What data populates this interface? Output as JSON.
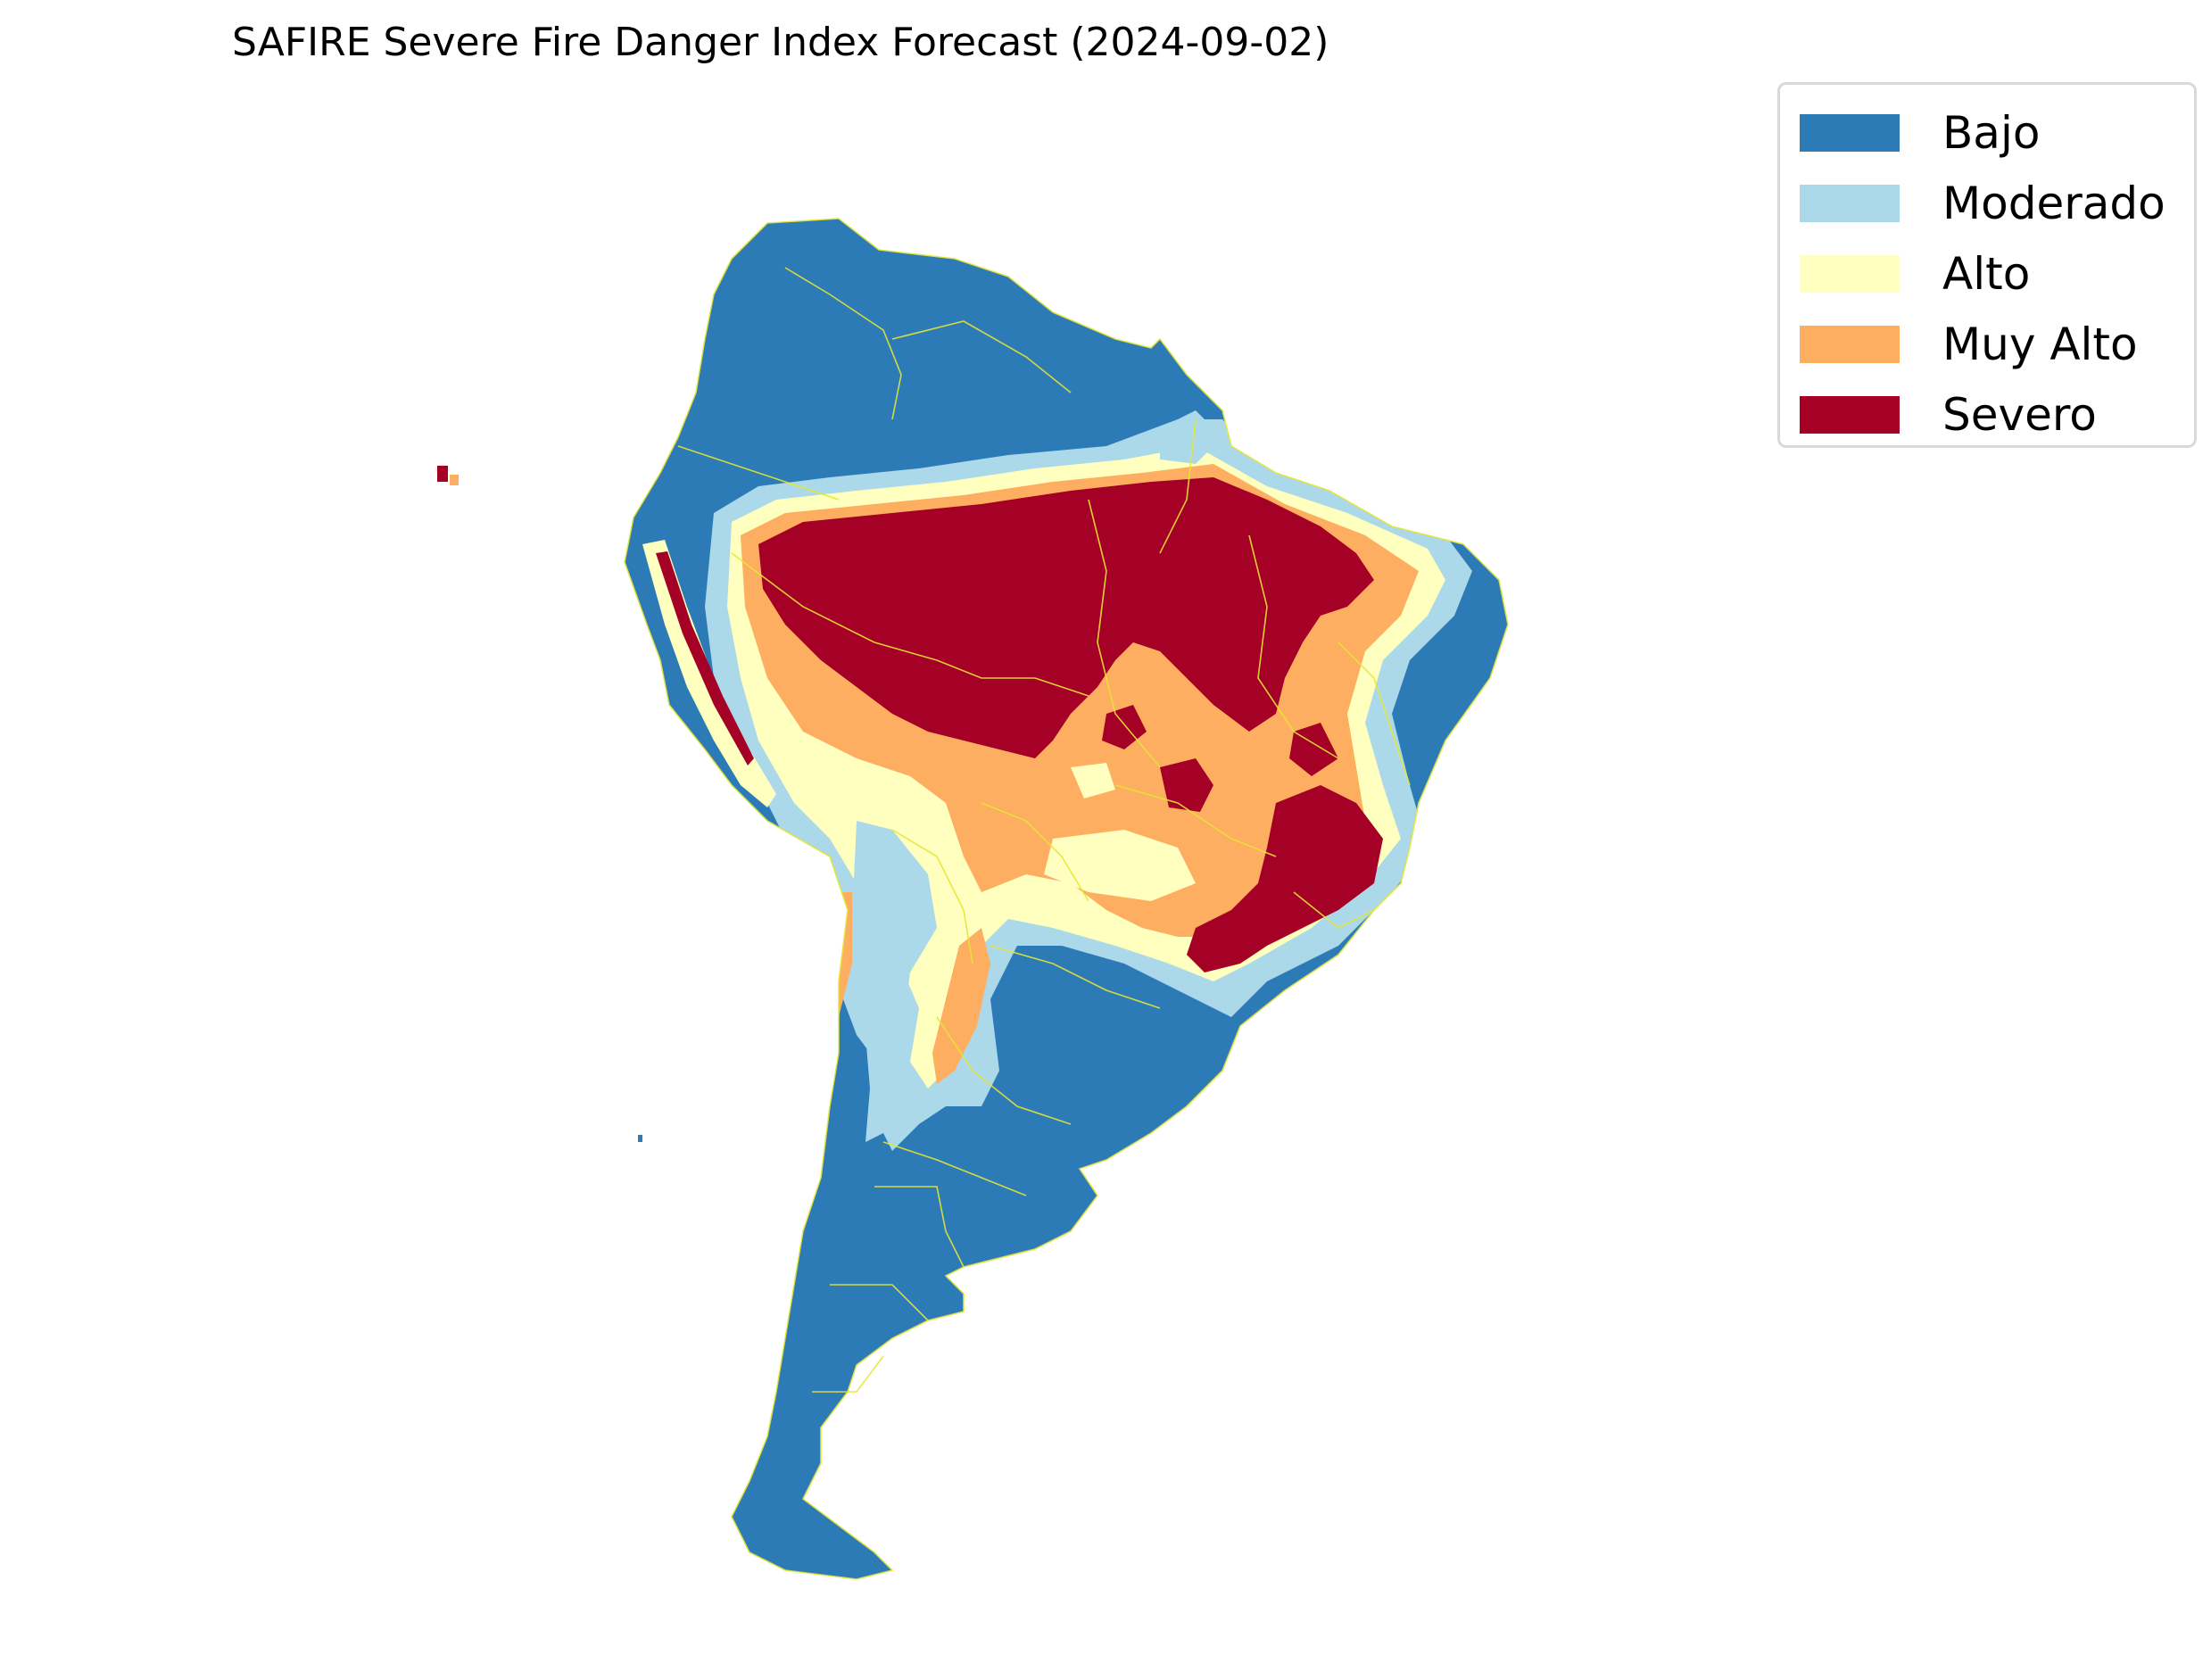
{
  "title": "SAFIRE Severe Fire Danger Index Forecast (2024-09-02)",
  "legend": {
    "items": [
      {
        "label": "Bajo",
        "color": "#2c7bb6"
      },
      {
        "label": "Moderado",
        "color": "#abd9e9"
      },
      {
        "label": "Alto",
        "color": "#ffffbf"
      },
      {
        "label": "Muy Alto",
        "color": "#fdae61"
      },
      {
        "label": "Severo",
        "color": "#a50026"
      }
    ]
  },
  "map": {
    "region": "South America",
    "boundary_color": "#e6e635",
    "categories": [
      "Bajo",
      "Moderado",
      "Alto",
      "Muy Alto",
      "Severo"
    ]
  }
}
